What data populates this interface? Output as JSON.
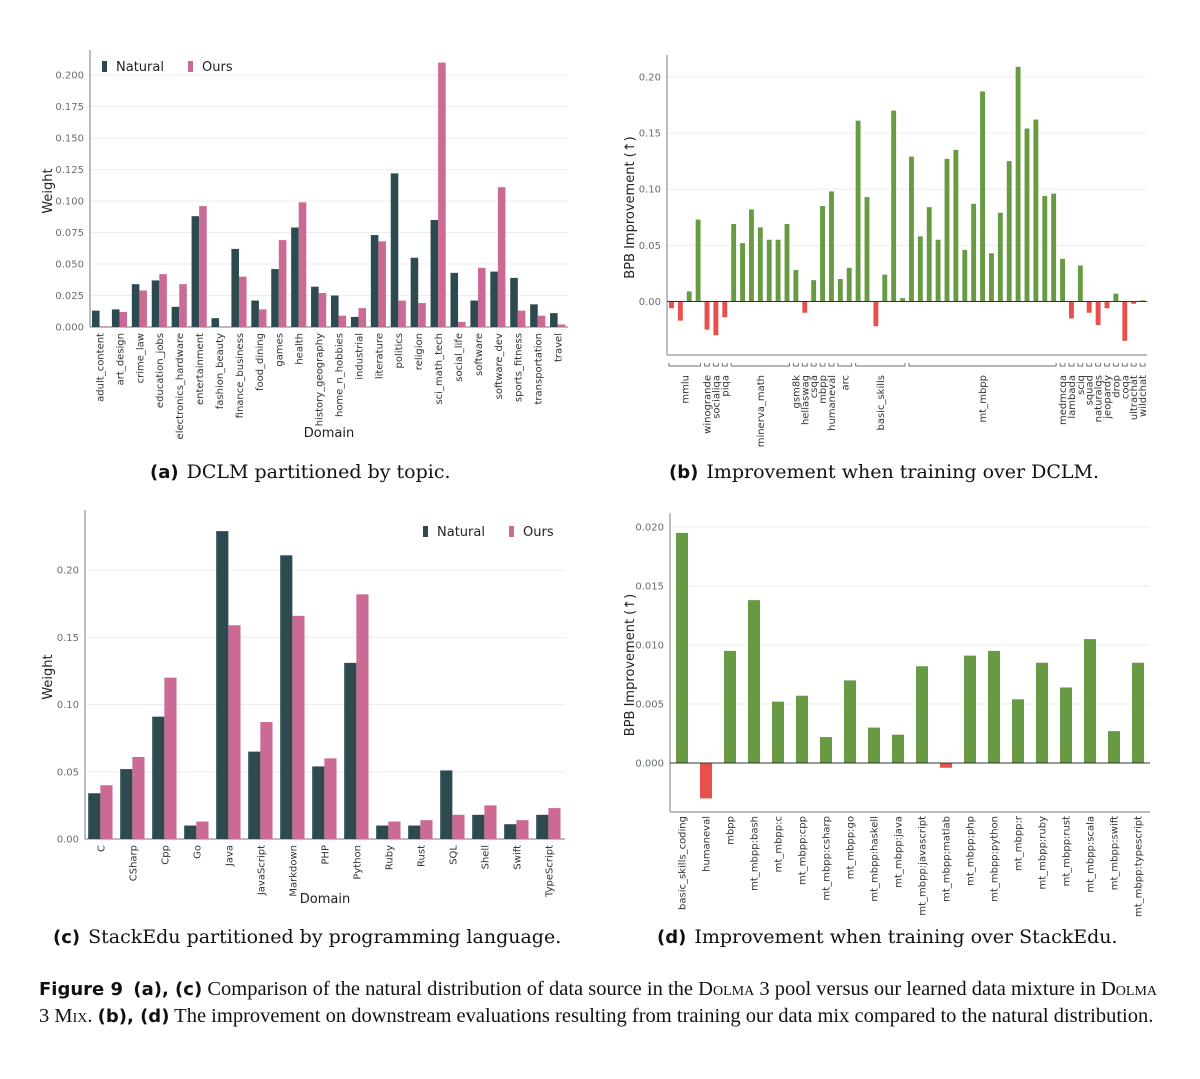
{
  "colors": {
    "natural": "#2c4a50",
    "ours": "#cc6a96",
    "positive": "#679a42",
    "negative": "#e8504c",
    "grid": "#ececec",
    "axis": "#8a9499",
    "tick": "#666e72"
  },
  "chart_data": [
    {
      "id": "a",
      "type": "bar",
      "title": "",
      "xlabel": "Domain",
      "ylabel": "Weight",
      "ylim": [
        0,
        0.216
      ],
      "yticks": [
        0,
        0.025,
        0.05,
        0.075,
        0.1,
        0.125,
        0.15,
        0.175,
        0.2
      ],
      "ytick_decimals": 3,
      "grid": true,
      "legend_position": "top-left",
      "categories": [
        "adult_content",
        "art_design",
        "crime_law",
        "education_jobs",
        "electronics_hardware",
        "entertainment",
        "fashion_beauty",
        "finance_business",
        "food_dining",
        "games",
        "health",
        "history_geography",
        "home_n_hobbies",
        "industrial",
        "literature",
        "politics",
        "religion",
        "sci_math_tech",
        "social_life",
        "software",
        "software_dev",
        "sports_fitness",
        "transportation",
        "travel"
      ],
      "series": [
        {
          "name": "Natural",
          "values": [
            0.013,
            0.014,
            0.034,
            0.037,
            0.016,
            0.088,
            0.007,
            0.062,
            0.021,
            0.046,
            0.079,
            0.032,
            0.025,
            0.008,
            0.073,
            0.122,
            0.055,
            0.085,
            0.043,
            0.021,
            0.044,
            0.039,
            0.018,
            0.011
          ]
        },
        {
          "name": "Ours",
          "values": [
            0.0005,
            0.012,
            0.029,
            0.042,
            0.034,
            0.096,
            0.0,
            0.04,
            0.014,
            0.069,
            0.099,
            0.027,
            0.009,
            0.015,
            0.068,
            0.021,
            0.019,
            0.21,
            0.004,
            0.047,
            0.111,
            0.013,
            0.009,
            0.002
          ]
        }
      ]
    },
    {
      "id": "b",
      "type": "bar",
      "title": "",
      "xlabel": "",
      "ylabel": "BPB Improvement (↑)",
      "ylim": [
        -0.0476,
        0.215
      ],
      "yticks": [
        0,
        0.05,
        0.1,
        0.15,
        0.2
      ],
      "ytick_decimals": 2,
      "grid": true,
      "values": [
        -0.006,
        -0.017,
        0.009,
        0.073,
        -0.025,
        -0.03,
        -0.014,
        0.069,
        0.052,
        0.082,
        0.066,
        0.055,
        0.055,
        0.069,
        0.028,
        -0.01,
        0.019,
        0.085,
        0.098,
        0.02,
        0.03,
        0.161,
        0.093,
        -0.022,
        0.024,
        0.17,
        0.003,
        0.129,
        0.058,
        0.084,
        0.055,
        0.127,
        0.135,
        0.046,
        0.087,
        0.187,
        0.043,
        0.079,
        0.125,
        0.209,
        0.154,
        0.162,
        0.094,
        0.096,
        0.038,
        -0.015,
        0.032,
        -0.01,
        -0.021,
        -0.006,
        0.007,
        -0.035,
        -0.002,
        0.001
      ],
      "groups": [
        {
          "label": "mmlu",
          "start": 0,
          "end": 3
        },
        {
          "label": "winogrande",
          "start": 4,
          "end": 4
        },
        {
          "label": "socialiqa",
          "start": 5,
          "end": 5
        },
        {
          "label": "piqa",
          "start": 6,
          "end": 6
        },
        {
          "label": "minerva_math",
          "start": 7,
          "end": 13
        },
        {
          "label": "gsm8k",
          "start": 14,
          "end": 14
        },
        {
          "label": "hellaswag",
          "start": 15,
          "end": 15
        },
        {
          "label": "csqa",
          "start": 16,
          "end": 16
        },
        {
          "label": "mbpp",
          "start": 17,
          "end": 17
        },
        {
          "label": "humaneval",
          "start": 18,
          "end": 18
        },
        {
          "label": "arc",
          "start": 19,
          "end": 20
        },
        {
          "label": "basic_skills",
          "start": 21,
          "end": 26
        },
        {
          "label": "mt_mbpp",
          "start": 27,
          "end": 43
        },
        {
          "label": "medmcqa",
          "start": 44,
          "end": 44
        },
        {
          "label": "lambada",
          "start": 45,
          "end": 45
        },
        {
          "label": "sciq",
          "start": 46,
          "end": 46
        },
        {
          "label": "squad",
          "start": 47,
          "end": 47
        },
        {
          "label": "naturalqs",
          "start": 48,
          "end": 48
        },
        {
          "label": "jeopardy",
          "start": 49,
          "end": 49
        },
        {
          "label": "drop",
          "start": 50,
          "end": 50
        },
        {
          "label": "coqa",
          "start": 51,
          "end": 51
        },
        {
          "label": "ultrachat",
          "start": 52,
          "end": 52
        },
        {
          "label": "wildchat",
          "start": 53,
          "end": 53
        }
      ]
    },
    {
      "id": "c",
      "type": "bar",
      "title": "",
      "xlabel": "Domain",
      "ylabel": "Weight",
      "ylim": [
        0,
        0.241
      ],
      "yticks": [
        0,
        0.05,
        0.1,
        0.15,
        0.2
      ],
      "ytick_decimals": 2,
      "grid": true,
      "legend_position": "top-right",
      "categories": [
        "C",
        "CSharp",
        "Cpp",
        "Go",
        "Java",
        "JavaScript",
        "Markdown",
        "PHP",
        "Python",
        "Ruby",
        "Rust",
        "SQL",
        "Shell",
        "Swift",
        "TypeScript"
      ],
      "series": [
        {
          "name": "Natural",
          "values": [
            0.034,
            0.052,
            0.091,
            0.01,
            0.229,
            0.065,
            0.211,
            0.054,
            0.131,
            0.01,
            0.01,
            0.051,
            0.018,
            0.011,
            0.018
          ]
        },
        {
          "name": "Ours",
          "values": [
            0.04,
            0.061,
            0.12,
            0.013,
            0.159,
            0.087,
            0.166,
            0.06,
            0.182,
            0.013,
            0.014,
            0.018,
            0.025,
            0.014,
            0.023
          ]
        }
      ]
    },
    {
      "id": "d",
      "type": "bar",
      "title": "",
      "xlabel": "",
      "ylabel": "BPB Improvement (↑)",
      "ylim": [
        -0.00415,
        0.02076
      ],
      "yticks": [
        0,
        0.005,
        0.01,
        0.015,
        0.02
      ],
      "ytick_decimals": 3,
      "grid": true,
      "categories": [
        "basic_skills_coding",
        "humaneval",
        "mbpp",
        "mt_mbpp:bash",
        "mt_mbpp:c",
        "mt_mbpp:cpp",
        "mt_mbpp:csharp",
        "mt_mbpp:go",
        "mt_mbpp:haskell",
        "mt_mbpp:java",
        "mt_mbpp:javascript",
        "mt_mbpp:matlab",
        "mt_mbpp:php",
        "mt_mbpp:python",
        "mt_mbpp:r",
        "mt_mbpp:ruby",
        "mt_mbpp:rust",
        "mt_mbpp:scala",
        "mt_mbpp:swift",
        "mt_mbpp:typescript"
      ],
      "values": [
        0.0195,
        -0.003,
        0.0095,
        0.0138,
        0.0052,
        0.0057,
        0.0022,
        0.007,
        0.003,
        0.0024,
        0.0082,
        -0.0004,
        0.0091,
        0.0095,
        0.0054,
        0.0085,
        0.0064,
        0.0105,
        0.0027,
        0.0085
      ]
    }
  ],
  "subcaptions": [
    {
      "label": "(a)",
      "text": "DCLM partitioned by topic."
    },
    {
      "label": "(b)",
      "text": "Improvement when training over DCLM."
    },
    {
      "label": "(c)",
      "text": "StackEdu partitioned by programming language."
    },
    {
      "label": "(d)",
      "text": "Improvement when training over StackEdu."
    }
  ],
  "figure_caption": {
    "label": "Figure 9",
    "ref1": "(a), (c)",
    "text1": " Comparison of the natural distribution of data source in the ",
    "dolma": "Dolma",
    "text2": " 3 pool versus our learned data mixture in ",
    "dolma_mix": "Dolma 3 Mix",
    "text3": ". ",
    "ref2": "(b), (d)",
    "text4": " The improvement on downstream evaluations resulting from training our data mix compared to the natural distribution."
  }
}
